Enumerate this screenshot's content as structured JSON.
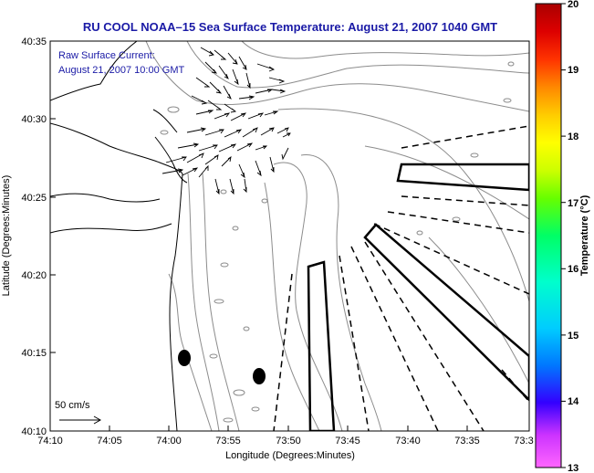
{
  "title": "RU COOL  NOAA–15  Sea Surface Temperature:  August 21, 2007 1040 GMT",
  "annotation": {
    "line1": "Raw Surface Current:",
    "line2": "August 21, 2007 10:00 GMT"
  },
  "scale_label": "50 cm/s",
  "x_axis": {
    "label": "Longitude (Degrees:Minutes)",
    "ticks": [
      "74:10",
      "74:05",
      "74:00",
      "73:55",
      "73:50",
      "73:45",
      "73:40",
      "73:35",
      "73:3"
    ]
  },
  "y_axis": {
    "label": "Latitude (Degrees:Minutes)",
    "ticks": [
      "40:35",
      "40:30",
      "40:25",
      "40:20",
      "40:15",
      "40:10"
    ]
  },
  "colorbar": {
    "label": "Temperature (°C)",
    "ticks": [
      "20",
      "19",
      "18",
      "17",
      "16",
      "15",
      "14",
      "13"
    ],
    "colors": [
      "#ff66ff",
      "#cc33ff",
      "#3300ff",
      "#0077ff",
      "#00ccff",
      "#00ffcc",
      "#00ff66",
      "#66ff00",
      "#ccff00",
      "#ffff00",
      "#ffcc00",
      "#ff8800",
      "#ff3300",
      "#dd0000",
      "#aa0000"
    ]
  },
  "colors": {
    "title": "#1a1aa6",
    "contour": "#8c8c8c",
    "frame": "#000000"
  }
}
